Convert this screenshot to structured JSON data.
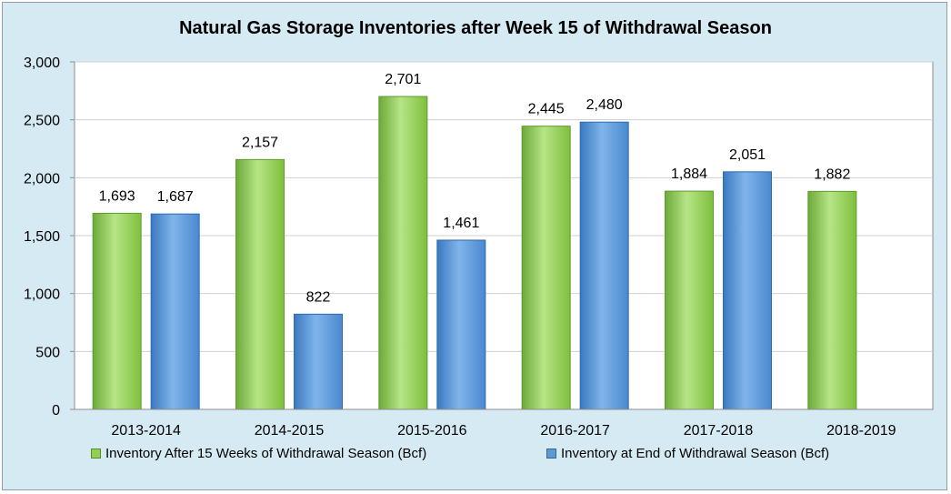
{
  "chart_data": {
    "type": "bar",
    "title": "Natural Gas Storage Inventories after Week 15 of Withdrawal Season",
    "xlabel": "",
    "ylabel": "",
    "ylim": [
      0,
      3000
    ],
    "yticks": [
      0,
      500,
      1000,
      1500,
      2000,
      2500,
      3000
    ],
    "ytick_labels": [
      "0",
      "500",
      "1,000",
      "1,500",
      "2,000",
      "2,500",
      "3,000"
    ],
    "categories": [
      "2013-2014",
      "2014-2015",
      "2015-2016",
      "2016-2017",
      "2017-2018",
      "2018-2019"
    ],
    "series": [
      {
        "name": "Inventory After 15 Weeks of Withdrawal Season (Bcf)",
        "color": "#92d050",
        "values": [
          1693,
          2157,
          2701,
          2445,
          1884,
          1882
        ],
        "labels": [
          "1,693",
          "2,157",
          "2,701",
          "2,445",
          "1,884",
          "1,882"
        ]
      },
      {
        "name": "Inventory at End of Withdrawal Season (Bcf)",
        "color": "#5b9bd5",
        "values": [
          1687,
          822,
          1461,
          2480,
          2051,
          null
        ],
        "labels": [
          "1,687",
          "822",
          "1,461",
          "2,480",
          "2,051",
          null
        ]
      }
    ],
    "grid": true,
    "legend_position": "bottom"
  }
}
